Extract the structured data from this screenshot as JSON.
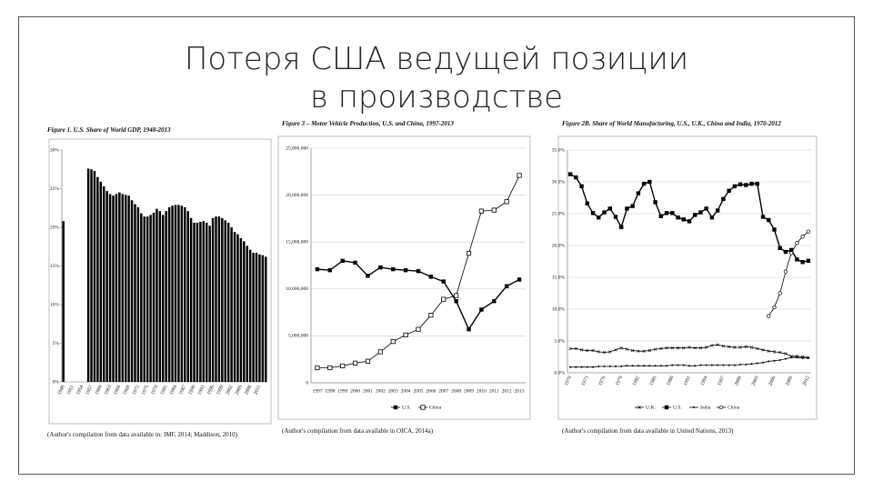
{
  "title": "Потеря США ведущей позиции в производстве",
  "chart_data": [
    {
      "type": "bar",
      "title": "Figure 1. U.S. Share of World GDP, 1948-2013",
      "source": "(Author's compilation from data available in: IMF, 2014; Maddison, 2010)",
      "categories": [
        "1948",
        null,
        null,
        "1951",
        null,
        null,
        "1954",
        null,
        null,
        "1957",
        null,
        null,
        "1960",
        null,
        null,
        "1963",
        null,
        null,
        "1966",
        null,
        null,
        "1969",
        null,
        null,
        "1972",
        null,
        null,
        "1975",
        null,
        null,
        "1978",
        null,
        null,
        "1981",
        null,
        null,
        "1984",
        null,
        null,
        "1987",
        null,
        null,
        "1990",
        null,
        null,
        "1993",
        null,
        null,
        "1996",
        null,
        null,
        "1999",
        null,
        null,
        "2002",
        null,
        null,
        "2005",
        null,
        null,
        "2008",
        null,
        null,
        "2011",
        null,
        null
      ],
      "values": [
        20.8,
        null,
        null,
        null,
        null,
        null,
        null,
        null,
        27.6,
        27.5,
        27.3,
        26.5,
        25.9,
        25.3,
        24.7,
        24.3,
        24.1,
        24.3,
        24.5,
        24.3,
        24.2,
        24.1,
        23.5,
        23.0,
        22.6,
        21.8,
        21.4,
        21.4,
        21.6,
        21.9,
        22.4,
        22.1,
        21.6,
        22.1,
        22.6,
        22.8,
        22.9,
        22.9,
        22.8,
        22.6,
        22.1,
        21.2,
        20.6,
        20.6,
        20.7,
        20.8,
        20.6,
        20.2,
        21.2,
        21.4,
        21.4,
        21.2,
        20.9,
        20.6,
        20.0,
        19.4,
        19.1,
        18.6,
        18.2,
        17.6,
        17.1,
        16.7,
        16.7,
        16.5,
        16.4,
        16.2
      ],
      "color": "#000000",
      "ylim": [
        0,
        30
      ],
      "yticks": [
        {
          "value": 0,
          "label": "0%"
        },
        {
          "value": 5,
          "label": "5%"
        },
        {
          "value": 10,
          "label": "10%"
        },
        {
          "value": 15,
          "label": "15%"
        },
        {
          "value": 20,
          "label": "20%"
        },
        {
          "value": 25,
          "label": "25%"
        },
        {
          "value": 30,
          "label": "30%"
        }
      ],
      "grid": false
    },
    {
      "type": "line",
      "title": "Figure 3 – Motor Vehicle Production, U.S. and China, 1997-2013",
      "source": "(Author's compilation from data available in OICA, 2014a)",
      "categories": [
        "1997",
        "1998",
        "1999",
        "2000",
        "2001",
        "2002",
        "2003",
        "2004",
        "2005",
        "2006",
        "2007",
        "2008",
        "2009",
        "2010",
        "2011",
        "2012",
        "2013"
      ],
      "series": [
        {
          "name": "U.S.",
          "color": "#000000",
          "marker": "square",
          "values": [
            12100000,
            12000000,
            13000000,
            12800000,
            11400000,
            12300000,
            12100000,
            12000000,
            11900000,
            11300000,
            10800000,
            8700000,
            5700000,
            7800000,
            8700000,
            10300000,
            11000000
          ]
        },
        {
          "name": "China",
          "color": "#000000",
          "marker": "square-open",
          "values": [
            1600000,
            1600000,
            1800000,
            2100000,
            2300000,
            3300000,
            4400000,
            5100000,
            5700000,
            7200000,
            8900000,
            9300000,
            13800000,
            18300000,
            18400000,
            19300000,
            22100000
          ]
        }
      ],
      "ylim": [
        0,
        25000000
      ],
      "yticks": [
        0,
        {
          "value": 5000000,
          "label": "5,000,000"
        },
        {
          "value": 10000000,
          "label": "10,000,000"
        },
        {
          "value": 15000000,
          "label": "15,000,000"
        },
        {
          "value": 20000000,
          "label": "20,000,000"
        },
        {
          "value": 25000000,
          "label": "25,000,000"
        }
      ],
      "grid": true,
      "legend": "bottom"
    },
    {
      "type": "line",
      "title": "Figure 2B. Share of World Manufacturing, U.S., U.K., China and India, 1970-2012",
      "source": "(Author's compilation from data available in United Nations, 2013)",
      "categories": [
        "1970",
        null,
        null,
        "1973",
        null,
        null,
        "1976",
        null,
        null,
        "1979",
        null,
        null,
        "1982",
        null,
        null,
        "1985",
        null,
        null,
        "1988",
        null,
        null,
        "1991",
        null,
        null,
        "1994",
        null,
        null,
        "1997",
        null,
        null,
        "2000",
        null,
        null,
        "2003",
        null,
        null,
        "2006",
        null,
        null,
        "2009",
        null,
        null,
        "2012"
      ],
      "series": [
        {
          "name": "U.K.",
          "color": "#000000",
          "marker": "x",
          "values": [
            3.8,
            3.8,
            3.6,
            3.5,
            3.5,
            3.3,
            3.2,
            3.3,
            3.6,
            3.9,
            3.7,
            3.5,
            3.4,
            3.4,
            3.5,
            3.7,
            3.8,
            3.9,
            3.9,
            3.9,
            3.9,
            4.0,
            3.9,
            3.9,
            4.0,
            4.3,
            4.4,
            4.2,
            4.1,
            4.0,
            4.0,
            4.1,
            4.0,
            3.8,
            3.6,
            3.4,
            3.3,
            3.2,
            3.0,
            2.6,
            2.6,
            2.5,
            2.4
          ]
        },
        {
          "name": "U.S.",
          "color": "#000000",
          "marker": "square",
          "values": [
            31.2,
            30.7,
            29.3,
            26.6,
            25.1,
            24.4,
            25.2,
            25.8,
            24.5,
            22.9,
            25.8,
            26.2,
            28.2,
            29.7,
            30.0,
            26.8,
            24.6,
            25.1,
            25.1,
            24.4,
            24.1,
            23.8,
            24.8,
            25.2,
            25.8,
            24.4,
            25.5,
            27.3,
            28.6,
            29.3,
            29.6,
            29.5,
            29.7,
            29.7,
            24.5,
            24.0,
            22.5,
            19.6,
            19.0,
            19.3,
            17.8,
            17.4,
            17.6
          ]
        },
        {
          "name": "India",
          "color": "#000000",
          "marker": "dot",
          "values": [
            0.9,
            0.9,
            0.9,
            0.9,
            0.9,
            1.0,
            1.0,
            1.0,
            1.0,
            1.0,
            1.1,
            1.1,
            1.1,
            1.1,
            1.1,
            1.1,
            1.1,
            1.1,
            1.2,
            1.2,
            1.2,
            1.1,
            1.1,
            1.2,
            1.2,
            1.2,
            1.2,
            1.2,
            1.2,
            1.2,
            1.3,
            1.3,
            1.4,
            1.5,
            1.6,
            1.8,
            1.9,
            2.0,
            2.2,
            2.4,
            2.4,
            2.3,
            2.3
          ]
        },
        {
          "name": "China",
          "color": "#000000",
          "marker": "circle-open",
          "values": [
            null,
            null,
            null,
            null,
            null,
            null,
            null,
            null,
            null,
            null,
            null,
            null,
            null,
            null,
            null,
            null,
            null,
            null,
            null,
            null,
            null,
            null,
            null,
            null,
            null,
            null,
            null,
            null,
            null,
            null,
            null,
            null,
            null,
            null,
            null,
            8.9,
            10.3,
            12.5,
            15.9,
            18.8,
            20.4,
            21.4,
            22.2
          ]
        }
      ],
      "ylim": [
        0,
        35
      ],
      "yticks": [
        {
          "value": 0,
          "label": "0.0%"
        },
        {
          "value": 5,
          "label": "5.0%"
        },
        {
          "value": 10,
          "label": "10.0%"
        },
        {
          "value": 15,
          "label": "15.0%"
        },
        {
          "value": 20,
          "label": "20.0%"
        },
        {
          "value": 25,
          "label": "25.0%"
        },
        {
          "value": 30,
          "label": "30.0%"
        },
        {
          "value": 35,
          "label": "35.0%"
        }
      ],
      "grid": true,
      "legend": "bottom"
    }
  ]
}
